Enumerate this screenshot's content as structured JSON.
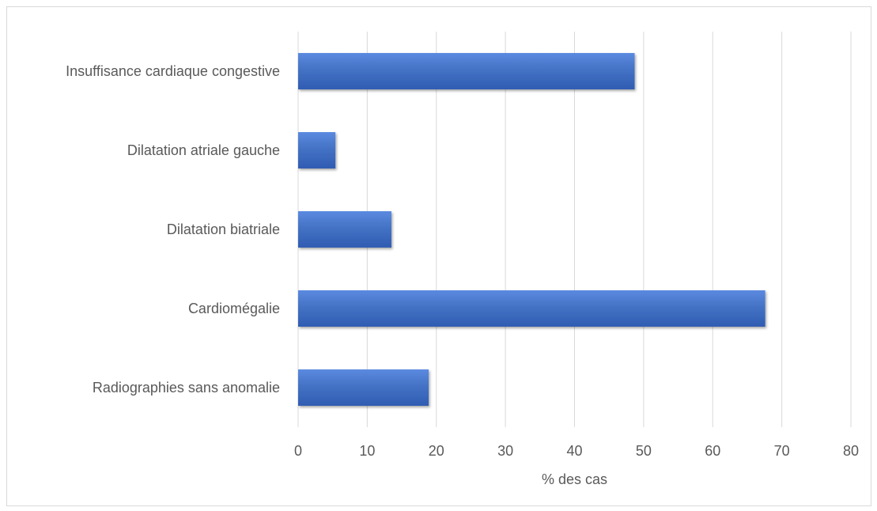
{
  "chart_data": {
    "type": "bar",
    "orientation": "horizontal",
    "title": "",
    "xlabel": "% des cas",
    "ylabel": "",
    "categories": [
      "Insuffisance cardiaque congestive",
      "Dilatation atriale gauche",
      "Dilatation biatriale",
      "Cardiomégalie",
      "Radiographies sans anomalie"
    ],
    "values": [
      48.7,
      5.4,
      13.5,
      67.6,
      18.9
    ],
    "xlim": [
      0,
      80
    ],
    "xticks": [
      "0",
      "10",
      "20",
      "30",
      "40",
      "50",
      "60",
      "70",
      "80"
    ],
    "grid": "vertical",
    "legend": "none",
    "bar_color": "#4472c4",
    "bar_color_light": "#5b8ae0",
    "bar_color_dark": "#2f5cb2"
  }
}
